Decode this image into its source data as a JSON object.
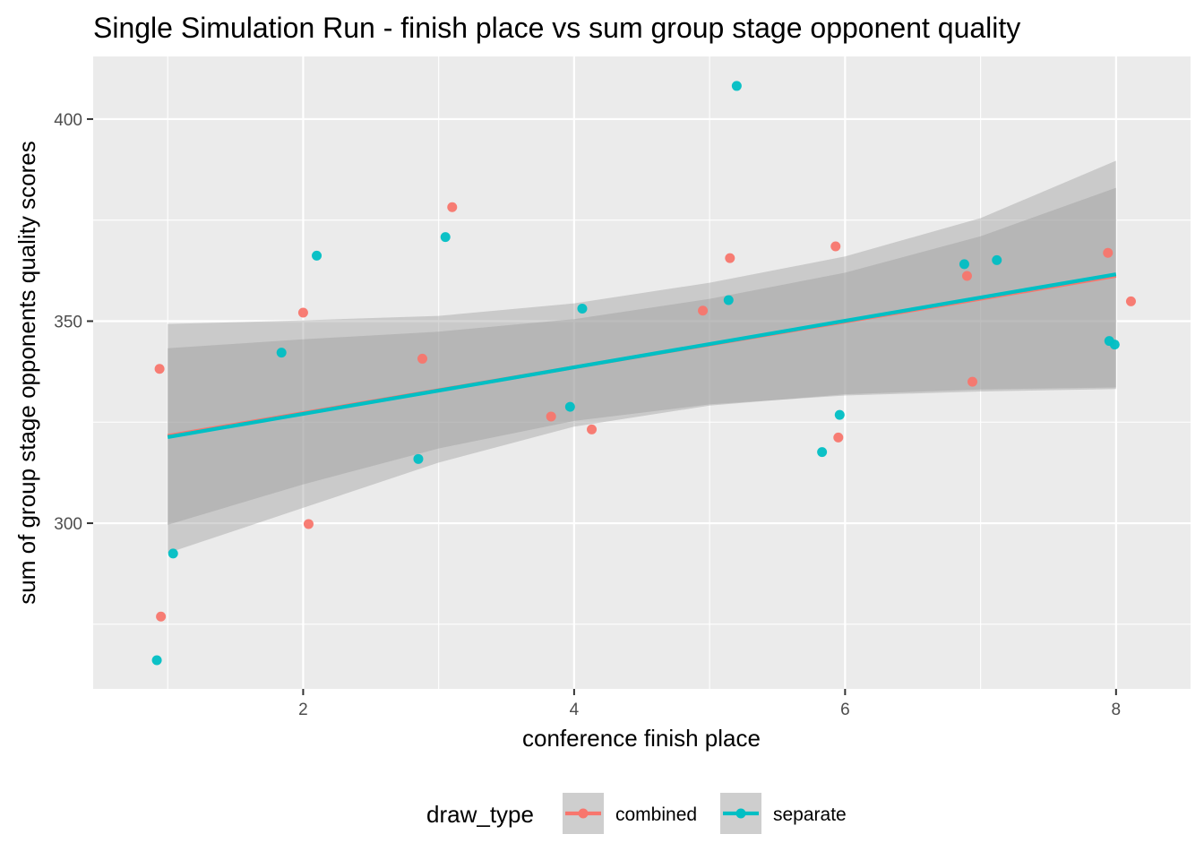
{
  "chart_data": {
    "type": "scatter",
    "title": "Single Simulation Run - finish place vs sum group stage opponent quality",
    "xlabel": "conference finish place",
    "ylabel": "sum of group stage opponents quality scores",
    "xlim": [
      0.45,
      8.55
    ],
    "ylim": [
      259,
      415.5
    ],
    "x_ticks": [
      2,
      4,
      6,
      8
    ],
    "x_tick_labels": [
      "2",
      "4",
      "6",
      "8"
    ],
    "y_ticks": [
      300,
      350,
      400
    ],
    "y_tick_labels": [
      "300",
      "350",
      "400"
    ],
    "grid": true,
    "background": "#ebebeb",
    "legend": {
      "title": "draw_type",
      "position": "bottom",
      "entries": [
        "combined",
        "separate"
      ]
    },
    "series": [
      {
        "name": "combined",
        "color": "#F8766D",
        "points": [
          {
            "x": 0.94,
            "y": 338.2
          },
          {
            "x": 0.95,
            "y": 276.9
          },
          {
            "x": 2.0,
            "y": 352.1
          },
          {
            "x": 2.04,
            "y": 299.8
          },
          {
            "x": 2.88,
            "y": 340.7
          },
          {
            "x": 3.1,
            "y": 378.2
          },
          {
            "x": 3.83,
            "y": 326.4
          },
          {
            "x": 4.13,
            "y": 323.2
          },
          {
            "x": 4.95,
            "y": 352.6
          },
          {
            "x": 5.15,
            "y": 365.6
          },
          {
            "x": 5.93,
            "y": 368.5
          },
          {
            "x": 5.95,
            "y": 321.2
          },
          {
            "x": 6.9,
            "y": 361.2
          },
          {
            "x": 6.94,
            "y": 335.0
          },
          {
            "x": 7.94,
            "y": 366.9
          },
          {
            "x": 8.11,
            "y": 354.9
          }
        ],
        "trend": {
          "x": [
            1,
            8
          ],
          "y": [
            321.6,
            361.2
          ]
        },
        "ci_band": {
          "x": [
            1,
            2,
            3,
            4,
            5,
            6,
            7,
            8
          ],
          "lower": [
            299.6,
            309.6,
            318.5,
            325.3,
            329.4,
            331.6,
            332.6,
            333.2
          ],
          "upper": [
            349.3,
            350.2,
            351.3,
            354.4,
            359.5,
            366.0,
            375.5,
            389.7
          ]
        }
      },
      {
        "name": "separate",
        "color": "#00BFC4",
        "points": [
          {
            "x": 0.92,
            "y": 266.1
          },
          {
            "x": 1.04,
            "y": 292.5
          },
          {
            "x": 1.84,
            "y": 342.2
          },
          {
            "x": 2.1,
            "y": 366.2
          },
          {
            "x": 2.85,
            "y": 315.9
          },
          {
            "x": 3.05,
            "y": 370.8
          },
          {
            "x": 3.97,
            "y": 328.8
          },
          {
            "x": 4.06,
            "y": 353.1
          },
          {
            "x": 5.14,
            "y": 355.2
          },
          {
            "x": 5.2,
            "y": 408.2
          },
          {
            "x": 5.83,
            "y": 317.6
          },
          {
            "x": 5.96,
            "y": 326.8
          },
          {
            "x": 6.88,
            "y": 364.1
          },
          {
            "x": 7.12,
            "y": 365.1
          },
          {
            "x": 7.95,
            "y": 345.1
          },
          {
            "x": 7.99,
            "y": 344.2
          }
        ],
        "trend": {
          "x": [
            1,
            8
          ],
          "y": [
            321.3,
            361.6
          ]
        },
        "ci_band": {
          "x": [
            1,
            2,
            3,
            4,
            5,
            6,
            7,
            8
          ],
          "lower": [
            292.6,
            303.8,
            315.0,
            323.9,
            329.1,
            331.9,
            333.1,
            333.6
          ],
          "upper": [
            343.3,
            345.5,
            347.4,
            350.5,
            355.5,
            362.0,
            371.0,
            383.0
          ]
        }
      }
    ]
  }
}
